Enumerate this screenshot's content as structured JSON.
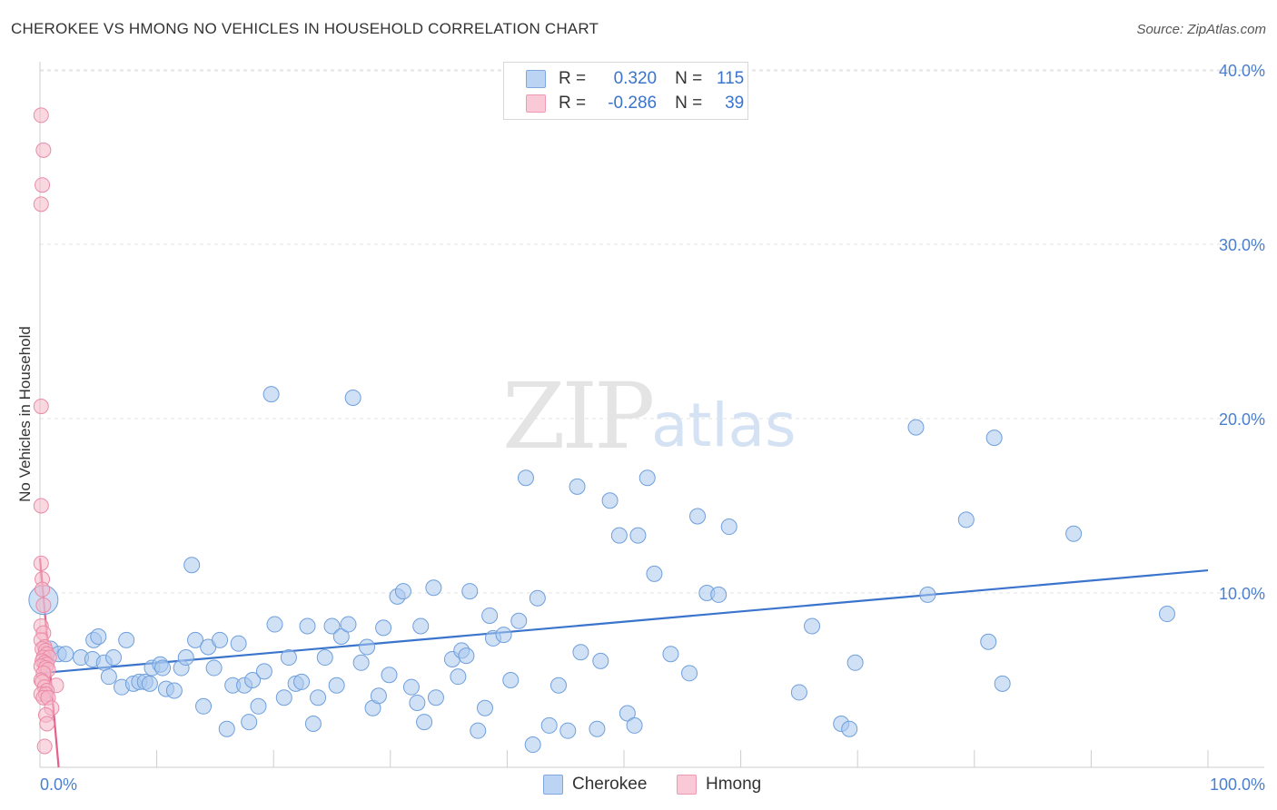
{
  "header": {
    "title": "CHEROKEE VS HMONG NO VEHICLES IN HOUSEHOLD CORRELATION CHART",
    "source": "Source: ZipAtlas.com"
  },
  "watermark": {
    "zip": "ZIP",
    "atlas": "atlas"
  },
  "legend": {
    "cherokee": {
      "r_label": "R =",
      "r_value": "0.320",
      "n_label": "N =",
      "n_value": "115",
      "color": "#a9c8ef"
    },
    "hmong": {
      "r_label": "R =",
      "r_value": "-0.286",
      "n_label": "N =",
      "n_value": "39",
      "color": "#f6b8c9"
    }
  },
  "bottom_legend": {
    "cherokee": "Cherokee",
    "hmong": "Hmong"
  },
  "colors": {
    "cherokee_fill": "#a9c8ef",
    "cherokee_stroke": "#6f9fdc",
    "cherokee_line": "#3a74cc",
    "hmong_fill": "#f6b8c9",
    "hmong_stroke": "#ea8aa6",
    "hmong_line": "#e5608a",
    "tick": "#4a7fd0"
  },
  "chart_data": {
    "type": "scatter",
    "title": "CHEROKEE VS HMONG NO VEHICLES IN HOUSEHOLD CORRELATION CHART",
    "xlabel": "",
    "ylabel": "No Vehicles in Household",
    "xlim": [
      0,
      100
    ],
    "ylim": [
      0,
      40
    ],
    "x_tick_labels": [
      "0.0%",
      "100.0%"
    ],
    "y_ticks": [
      10,
      20,
      30,
      40
    ],
    "y_tick_labels": [
      "10.0%",
      "20.0%",
      "30.0%",
      "40.0%"
    ],
    "grid": true,
    "series": [
      {
        "name": "Cherokee",
        "r": 0.32,
        "n": 115,
        "trend": {
          "x": [
            0,
            100
          ],
          "y": [
            5.4,
            11.3
          ]
        },
        "points": [
          [
            0.3,
            9.6
          ],
          [
            0.9,
            6.8
          ],
          [
            1.6,
            6.5
          ],
          [
            2.2,
            6.5
          ],
          [
            3.5,
            6.3
          ],
          [
            4.5,
            6.2
          ],
          [
            4.6,
            7.3
          ],
          [
            5.0,
            7.5
          ],
          [
            5.5,
            6.0
          ],
          [
            5.9,
            5.2
          ],
          [
            6.3,
            6.3
          ],
          [
            7.0,
            4.6
          ],
          [
            7.4,
            7.3
          ],
          [
            8.0,
            4.8
          ],
          [
            8.5,
            4.9
          ],
          [
            9.0,
            4.9
          ],
          [
            9.4,
            4.8
          ],
          [
            9.6,
            5.7
          ],
          [
            10.3,
            5.9
          ],
          [
            10.5,
            5.7
          ],
          [
            10.8,
            4.5
          ],
          [
            11.5,
            4.4
          ],
          [
            12.1,
            5.7
          ],
          [
            12.5,
            6.3
          ],
          [
            13.0,
            11.6
          ],
          [
            13.3,
            7.3
          ],
          [
            14.0,
            3.5
          ],
          [
            14.4,
            6.9
          ],
          [
            14.9,
            5.7
          ],
          [
            15.4,
            7.3
          ],
          [
            16.0,
            2.2
          ],
          [
            16.5,
            4.7
          ],
          [
            17.0,
            7.1
          ],
          [
            17.5,
            4.7
          ],
          [
            17.9,
            2.6
          ],
          [
            18.2,
            5.0
          ],
          [
            18.7,
            3.5
          ],
          [
            19.2,
            5.5
          ],
          [
            19.8,
            21.4
          ],
          [
            20.1,
            8.2
          ],
          [
            20.9,
            4.0
          ],
          [
            21.3,
            6.3
          ],
          [
            21.9,
            4.8
          ],
          [
            22.4,
            4.9
          ],
          [
            22.9,
            8.1
          ],
          [
            23.4,
            2.5
          ],
          [
            23.8,
            4.0
          ],
          [
            24.4,
            6.3
          ],
          [
            25.0,
            8.1
          ],
          [
            25.4,
            4.7
          ],
          [
            25.8,
            7.5
          ],
          [
            26.4,
            8.2
          ],
          [
            26.8,
            21.2
          ],
          [
            27.5,
            6.0
          ],
          [
            28.0,
            6.9
          ],
          [
            28.5,
            3.4
          ],
          [
            29.0,
            4.1
          ],
          [
            29.4,
            8.0
          ],
          [
            29.9,
            5.3
          ],
          [
            30.6,
            9.8
          ],
          [
            31.1,
            10.1
          ],
          [
            31.8,
            4.6
          ],
          [
            32.3,
            3.7
          ],
          [
            32.6,
            8.1
          ],
          [
            32.9,
            2.6
          ],
          [
            33.7,
            10.3
          ],
          [
            33.9,
            4.0
          ],
          [
            35.3,
            6.2
          ],
          [
            35.8,
            5.2
          ],
          [
            36.1,
            6.7
          ],
          [
            36.5,
            6.4
          ],
          [
            36.8,
            10.1
          ],
          [
            37.5,
            2.1
          ],
          [
            38.1,
            3.4
          ],
          [
            38.5,
            8.7
          ],
          [
            38.8,
            7.4
          ],
          [
            39.7,
            7.6
          ],
          [
            40.3,
            5.0
          ],
          [
            41.0,
            8.4
          ],
          [
            41.6,
            16.6
          ],
          [
            42.2,
            1.3
          ],
          [
            42.6,
            9.7
          ],
          [
            43.6,
            2.4
          ],
          [
            44.4,
            4.7
          ],
          [
            45.2,
            2.1
          ],
          [
            46.0,
            16.1
          ],
          [
            46.3,
            6.6
          ],
          [
            47.7,
            2.2
          ],
          [
            48.0,
            6.1
          ],
          [
            48.8,
            15.3
          ],
          [
            49.6,
            13.3
          ],
          [
            50.3,
            3.1
          ],
          [
            50.9,
            2.4
          ],
          [
            51.2,
            13.3
          ],
          [
            52.0,
            16.6
          ],
          [
            52.6,
            11.1
          ],
          [
            54.0,
            6.5
          ],
          [
            55.6,
            5.4
          ],
          [
            56.3,
            14.4
          ],
          [
            57.1,
            10.0
          ],
          [
            58.1,
            9.9
          ],
          [
            59.0,
            13.8
          ],
          [
            65.0,
            4.3
          ],
          [
            66.1,
            8.1
          ],
          [
            68.6,
            2.5
          ],
          [
            69.3,
            2.2
          ],
          [
            69.8,
            6.0
          ],
          [
            75.0,
            19.5
          ],
          [
            76.0,
            9.9
          ],
          [
            79.3,
            14.2
          ],
          [
            81.2,
            7.2
          ],
          [
            81.7,
            18.9
          ],
          [
            82.4,
            4.8
          ],
          [
            88.5,
            13.4
          ],
          [
            96.5,
            8.8
          ]
        ]
      },
      {
        "name": "Hmong",
        "r": -0.286,
        "n": 39,
        "trend": {
          "x": [
            0,
            1.6
          ],
          "y": [
            12.0,
            -0.5
          ]
        },
        "points": [
          [
            0.1,
            37.4
          ],
          [
            0.3,
            35.4
          ],
          [
            0.2,
            33.4
          ],
          [
            0.1,
            32.3
          ],
          [
            0.1,
            20.7
          ],
          [
            0.1,
            15.0
          ],
          [
            0.1,
            11.7
          ],
          [
            0.2,
            10.8
          ],
          [
            0.2,
            10.2
          ],
          [
            0.3,
            9.3
          ],
          [
            0.1,
            8.1
          ],
          [
            0.3,
            7.7
          ],
          [
            0.1,
            7.3
          ],
          [
            0.4,
            6.9
          ],
          [
            0.2,
            6.8
          ],
          [
            0.5,
            6.7
          ],
          [
            0.6,
            6.5
          ],
          [
            0.3,
            6.3
          ],
          [
            0.8,
            6.3
          ],
          [
            0.2,
            6.1
          ],
          [
            0.4,
            6.0
          ],
          [
            0.6,
            5.9
          ],
          [
            0.1,
            5.8
          ],
          [
            0.5,
            5.7
          ],
          [
            0.7,
            5.6
          ],
          [
            0.3,
            5.4
          ],
          [
            0.1,
            5.0
          ],
          [
            0.2,
            4.9
          ],
          [
            0.4,
            4.6
          ],
          [
            1.4,
            4.7
          ],
          [
            0.6,
            4.4
          ],
          [
            0.1,
            4.2
          ],
          [
            0.5,
            4.2
          ],
          [
            0.3,
            4.0
          ],
          [
            0.7,
            4.0
          ],
          [
            1.0,
            3.4
          ],
          [
            0.5,
            3.0
          ],
          [
            0.6,
            2.5
          ],
          [
            0.4,
            1.2
          ]
        ]
      }
    ]
  }
}
